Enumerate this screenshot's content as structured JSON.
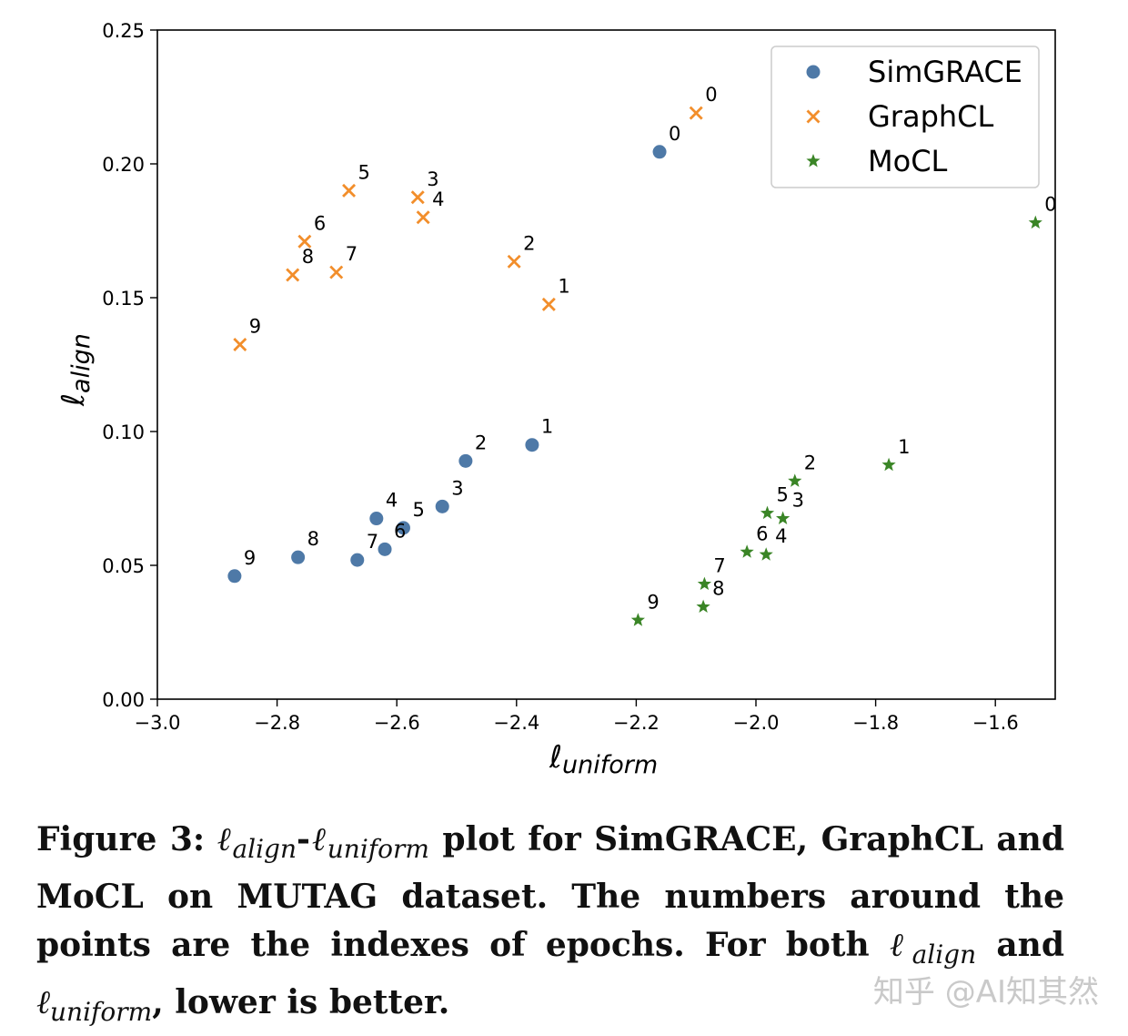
{
  "chart_data": {
    "type": "scatter",
    "title": "",
    "xlabel": "ℓ",
    "xlabel_sub": "uniform",
    "ylabel": "ℓ",
    "ylabel_sub": "align",
    "xlim": [
      -3.0,
      -1.5
    ],
    "ylim": [
      0.0,
      0.25
    ],
    "xticks": [
      -3.0,
      -2.8,
      -2.6,
      -2.4,
      -2.2,
      -2.0,
      -1.8,
      -1.6
    ],
    "xtick_labels": [
      "−3.0",
      "−2.8",
      "−2.6",
      "−2.4",
      "−2.2",
      "−2.0",
      "−1.8",
      "−1.6"
    ],
    "yticks": [
      0.0,
      0.05,
      0.1,
      0.15,
      0.2,
      0.25
    ],
    "ytick_labels": [
      "0.00",
      "0.05",
      "0.10",
      "0.15",
      "0.20",
      "0.25"
    ],
    "grid": false,
    "legend_position": "top-right",
    "series": [
      {
        "name": "SimGRACE",
        "marker": "circle",
        "color": "#4e79a7",
        "points": [
          {
            "epoch": "0",
            "x": -2.161,
            "y": 0.2045
          },
          {
            "epoch": "1",
            "x": -2.374,
            "y": 0.095
          },
          {
            "epoch": "2",
            "x": -2.485,
            "y": 0.089
          },
          {
            "epoch": "3",
            "x": -2.524,
            "y": 0.072
          },
          {
            "epoch": "4",
            "x": -2.634,
            "y": 0.0675
          },
          {
            "epoch": "5",
            "x": -2.589,
            "y": 0.064
          },
          {
            "epoch": "6",
            "x": -2.62,
            "y": 0.056
          },
          {
            "epoch": "7",
            "x": -2.666,
            "y": 0.052
          },
          {
            "epoch": "8",
            "x": -2.765,
            "y": 0.053
          },
          {
            "epoch": "9",
            "x": -2.871,
            "y": 0.046
          }
        ]
      },
      {
        "name": "GraphCL",
        "marker": "x",
        "color": "#f28e2b",
        "points": [
          {
            "epoch": "0",
            "x": -2.1,
            "y": 0.219
          },
          {
            "epoch": "1",
            "x": -2.346,
            "y": 0.1475
          },
          {
            "epoch": "2",
            "x": -2.404,
            "y": 0.1635
          },
          {
            "epoch": "3",
            "x": -2.565,
            "y": 0.1875
          },
          {
            "epoch": "4",
            "x": -2.556,
            "y": 0.18
          },
          {
            "epoch": "5",
            "x": -2.68,
            "y": 0.19
          },
          {
            "epoch": "6",
            "x": -2.754,
            "y": 0.171
          },
          {
            "epoch": "7",
            "x": -2.701,
            "y": 0.1595
          },
          {
            "epoch": "8",
            "x": -2.774,
            "y": 0.1585
          },
          {
            "epoch": "9",
            "x": -2.862,
            "y": 0.1325
          }
        ]
      },
      {
        "name": "MoCL",
        "marker": "star",
        "color": "#3a8526",
        "points": [
          {
            "epoch": "0",
            "x": -1.533,
            "y": 0.178
          },
          {
            "epoch": "1",
            "x": -1.778,
            "y": 0.0875
          },
          {
            "epoch": "2",
            "x": -1.935,
            "y": 0.0815
          },
          {
            "epoch": "3",
            "x": -1.955,
            "y": 0.0675
          },
          {
            "epoch": "4",
            "x": -1.983,
            "y": 0.054
          },
          {
            "epoch": "5",
            "x": -1.981,
            "y": 0.0695
          },
          {
            "epoch": "6",
            "x": -2.015,
            "y": 0.055
          },
          {
            "epoch": "7",
            "x": -2.086,
            "y": 0.043
          },
          {
            "epoch": "8",
            "x": -2.088,
            "y": 0.0345
          },
          {
            "epoch": "9",
            "x": -2.197,
            "y": 0.0295
          }
        ]
      }
    ]
  },
  "caption": {
    "label": "Figure 3:",
    "ell": "ℓ",
    "sub_align": "align",
    "dash": "-",
    "sub_uniform": "uniform",
    "part1": " plot for SimGRACE, GraphCL and MoCL on MUTAG dataset. The numbers around the points are the indexes of epochs. For both ",
    "and_word": " and ",
    "part2": ", lower is better."
  },
  "watermark": "知乎 @AI知其然"
}
